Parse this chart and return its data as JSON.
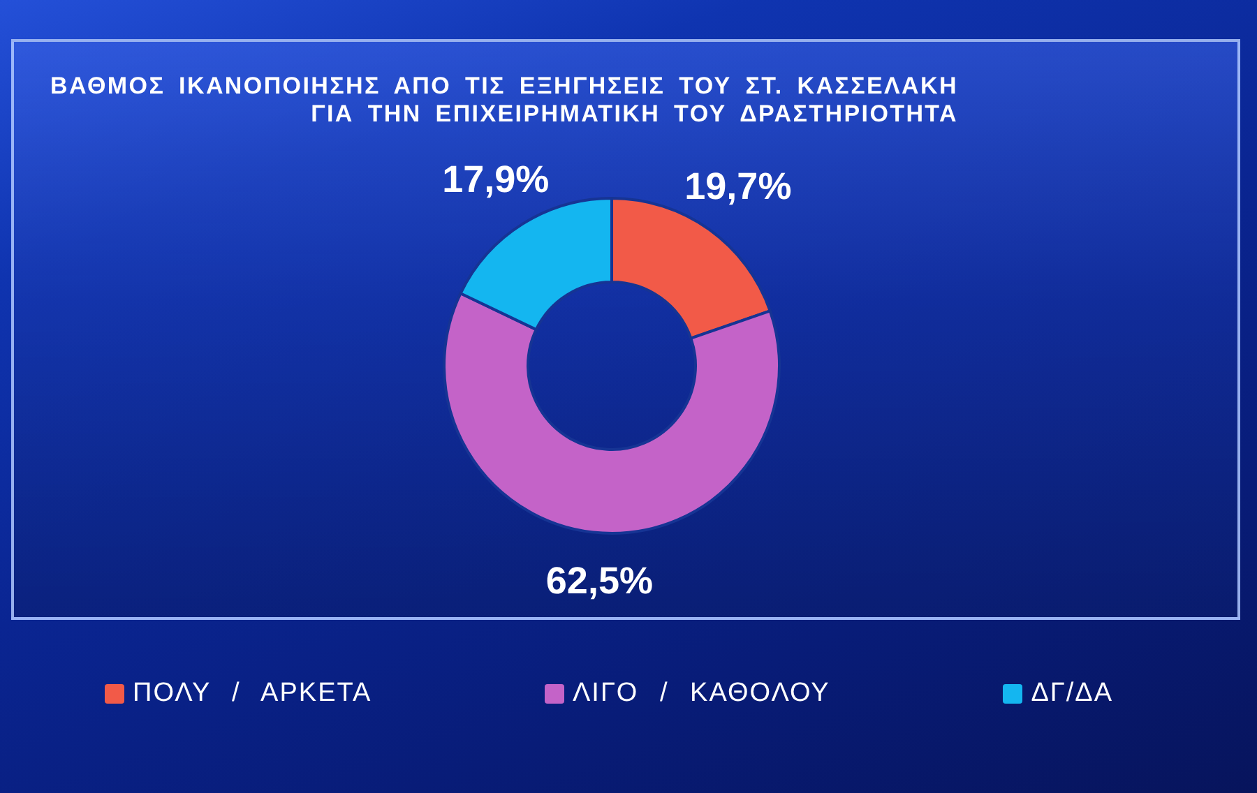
{
  "chart_data": {
    "type": "donut",
    "title": "ΒΑΘΜΟΣ ΙΚΑΝΟΠΟΙΗΣΗΣ ΑΠΟ ΤΙΣ ΕΞΗΓΗΣΕΙΣ ΤΟΥ ΣΤ. ΚΑΣΣΕΛΑΚΗ\nΓΙΑ ΤΗΝ ΕΠΙΧΕΙΡΗΜΑΤΙΚΗ ΤΟΥ ΔΡΑΣΤΗΡΙΟΤΗΤΑ",
    "categories": [
      "ΠΟΛΥ / ΑΡΚΕΤΑ",
      "ΛΙΓΟ / ΚΑΘΟΛΟΥ",
      "ΔΓ/ΔΑ"
    ],
    "values": [
      19.7,
      62.5,
      17.9
    ],
    "colors": [
      "#f25a48",
      "#c463c8",
      "#14b6f0"
    ],
    "value_labels": [
      "19,7%",
      "62,5%",
      "17,9%"
    ],
    "legend": "bottom"
  }
}
